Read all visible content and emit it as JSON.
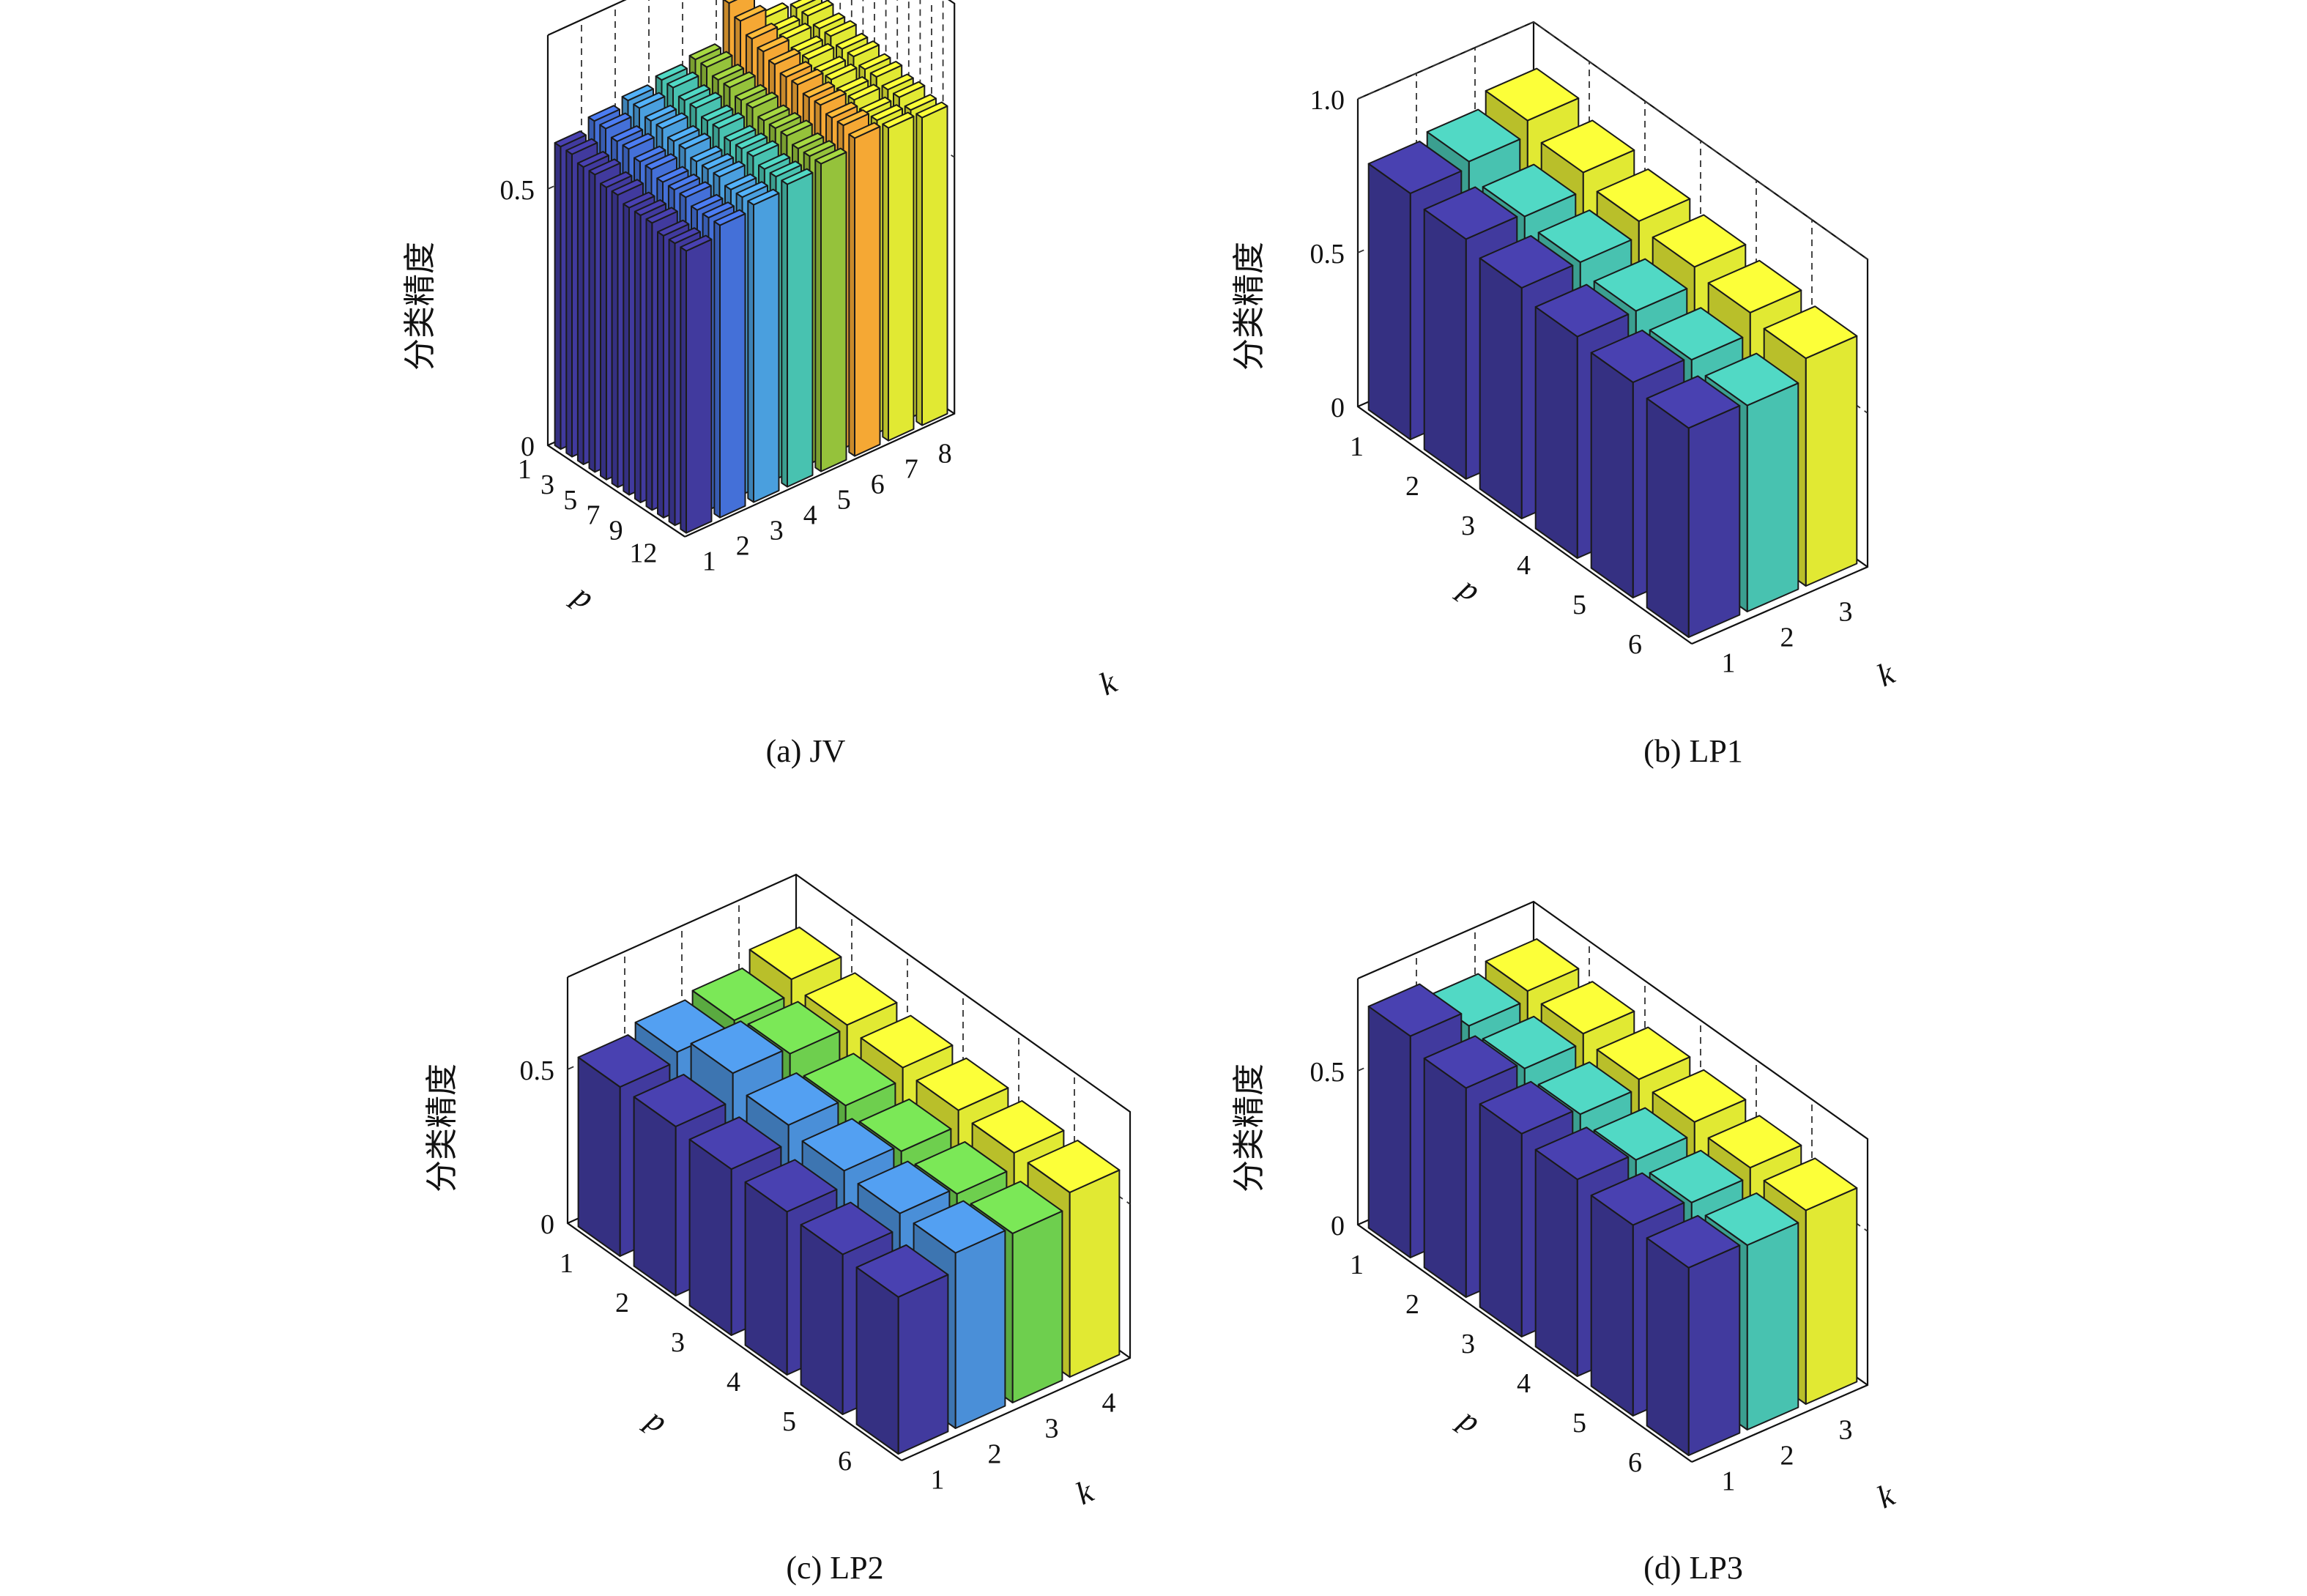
{
  "z_axis_label": "分类精度",
  "colors": {
    "k1": "#413a9e",
    "k2_jv": "#4470d8",
    "k3_jv": "#4a9fde",
    "k2_lp": "#4a8fd8",
    "k_mid_teal": "#48c2b0",
    "k_green": "#6ecf4e",
    "k_olive": "#95c23b",
    "k_orange": "#f5a834",
    "k_yellow": "#e1e933",
    "edge": "#1a1a1a",
    "grid_dash": "#333333"
  },
  "chart_data": [
    {
      "type": "bar3d",
      "caption": "(a) JV",
      "xlabel": "p",
      "ylabel": "k",
      "zlabel": "分类精度",
      "zlim": [
        0,
        0.8
      ],
      "zticks": [
        "0",
        "0.5"
      ],
      "p_ticks": [
        "1",
        "",
        "3",
        "",
        "5",
        "",
        "7",
        "",
        "9",
        "",
        "",
        "12"
      ],
      "k_ticks": [
        "1",
        "2",
        "3",
        "4",
        "5",
        "6",
        "7",
        "8"
      ],
      "series": [
        {
          "k": 1,
          "color_key": "k1",
          "values": [
            0.59,
            0.59,
            0.58,
            0.58,
            0.57,
            0.57,
            0.56,
            0.56,
            0.56,
            0.55,
            0.55,
            0.55
          ]
        },
        {
          "k": 2,
          "color_key": "k2_jv",
          "values": [
            0.61,
            0.61,
            0.6,
            0.6,
            0.59,
            0.59,
            0.58,
            0.58,
            0.58,
            0.57,
            0.57,
            0.57
          ]
        },
        {
          "k": 3,
          "color_key": "k3_jv",
          "values": [
            0.62,
            0.62,
            0.61,
            0.61,
            0.6,
            0.6,
            0.59,
            0.59,
            0.59,
            0.58,
            0.58,
            0.58
          ]
        },
        {
          "k": 4,
          "color_key": "k_mid_teal",
          "values": [
            0.63,
            0.63,
            0.62,
            0.62,
            0.61,
            0.61,
            0.6,
            0.6,
            0.6,
            0.59,
            0.59,
            0.59
          ]
        },
        {
          "k": 5,
          "color_key": "k_olive",
          "values": [
            0.64,
            0.64,
            0.63,
            0.63,
            0.62,
            0.62,
            0.61,
            0.61,
            0.61,
            0.6,
            0.6,
            0.6
          ]
        },
        {
          "k": 6,
          "color_key": "k_orange",
          "values": [
            0.72,
            0.7,
            0.68,
            0.67,
            0.66,
            0.65,
            0.65,
            0.64,
            0.64,
            0.63,
            0.63,
            0.62
          ]
        },
        {
          "k": 7,
          "color_key": "k_yellow",
          "values": [
            0.66,
            0.65,
            0.65,
            0.64,
            0.64,
            0.63,
            0.63,
            0.62,
            0.62,
            0.61,
            0.61,
            0.61
          ]
        },
        {
          "k": 8,
          "color_key": "k_yellow",
          "values": [
            0.65,
            0.65,
            0.64,
            0.64,
            0.63,
            0.63,
            0.62,
            0.62,
            0.61,
            0.61,
            0.6,
            0.6
          ]
        }
      ]
    },
    {
      "type": "bar3d",
      "caption": "(b) LP1",
      "xlabel": "p",
      "ylabel": "k",
      "zlabel": "分类精度",
      "zlim": [
        0,
        1.0
      ],
      "zticks": [
        "0",
        "0.5",
        "1.0"
      ],
      "p_ticks": [
        "1",
        "2",
        "3",
        "4",
        "5",
        "6"
      ],
      "k_ticks": [
        "1",
        "2",
        "3"
      ],
      "series": [
        {
          "k": 1,
          "color_key": "k1",
          "values": [
            0.8,
            0.78,
            0.75,
            0.72,
            0.7,
            0.68
          ]
        },
        {
          "k": 2,
          "color_key": "k_mid_teal",
          "values": [
            0.82,
            0.77,
            0.75,
            0.72,
            0.69,
            0.67
          ]
        },
        {
          "k": 3,
          "color_key": "k_yellow",
          "values": [
            0.87,
            0.83,
            0.8,
            0.78,
            0.76,
            0.74
          ]
        }
      ]
    },
    {
      "type": "bar3d",
      "caption": "(c) LP2",
      "xlabel": "p",
      "ylabel": "k",
      "zlabel": "分类精度",
      "zlim": [
        0,
        0.8
      ],
      "zticks": [
        "0",
        "0.5"
      ],
      "p_ticks": [
        "1",
        "2",
        "3",
        "4",
        "5",
        "6"
      ],
      "k_ticks": [
        "1",
        "2",
        "3",
        "4"
      ],
      "series": [
        {
          "k": 1,
          "color_key": "k1",
          "values": [
            0.55,
            0.55,
            0.54,
            0.53,
            0.52,
            0.51
          ]
        },
        {
          "k": 2,
          "color_key": "k2_lp",
          "values": [
            0.58,
            0.64,
            0.6,
            0.58,
            0.57,
            0.57
          ]
        },
        {
          "k": 3,
          "color_key": "k_green",
          "values": [
            0.6,
            0.62,
            0.58,
            0.56,
            0.55,
            0.55
          ]
        },
        {
          "k": 4,
          "color_key": "k_yellow",
          "values": [
            0.65,
            0.63,
            0.62,
            0.61,
            0.6,
            0.6
          ]
        }
      ]
    },
    {
      "type": "bar3d",
      "caption": "(d) LP3",
      "xlabel": "p",
      "ylabel": "k",
      "zlabel": "分类精度",
      "zlim": [
        0,
        0.8
      ],
      "zticks": [
        "0",
        "0.5"
      ],
      "p_ticks": [
        "1",
        "2",
        "3",
        "4",
        "5",
        "6"
      ],
      "k_ticks": [
        "1",
        "2",
        "3"
      ],
      "series": [
        {
          "k": 1,
          "color_key": "k1",
          "values": [
            0.72,
            0.68,
            0.66,
            0.64,
            0.62,
            0.61
          ]
        },
        {
          "k": 2,
          "color_key": "k_mid_teal",
          "values": [
            0.67,
            0.66,
            0.64,
            0.62,
            0.61,
            0.6
          ]
        },
        {
          "k": 3,
          "color_key": "k_yellow",
          "values": [
            0.7,
            0.69,
            0.67,
            0.66,
            0.64,
            0.63
          ]
        }
      ]
    }
  ]
}
